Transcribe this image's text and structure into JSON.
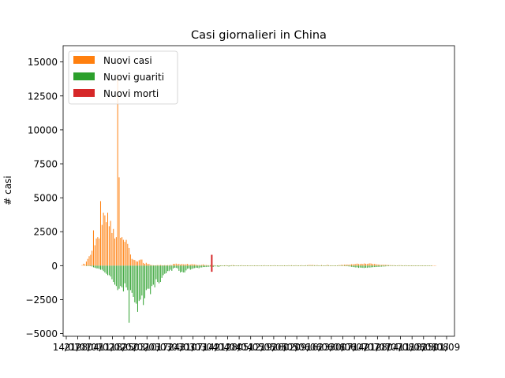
{
  "chart_data": {
    "type": "bar",
    "title": "Casi giornalieri in China",
    "xlabel": "",
    "ylabel": "# casi",
    "ylim": [
      -5200,
      16200
    ],
    "yticks": [
      -5000,
      -2500,
      0,
      2500,
      5000,
      7500,
      10000,
      12500,
      15000
    ],
    "ytick_labels": [
      "−5000",
      "−2500",
      "0",
      "2500",
      "5000",
      "7500",
      "10000",
      "12500",
      "15000"
    ],
    "xtick_labels": [
      "14/01",
      "21/01",
      "28/01",
      "04/02",
      "11/02",
      "18/02",
      "25/02",
      "03/03",
      "10/03",
      "17/03",
      "24/03",
      "31/03",
      "07/04",
      "14/04",
      "21/04",
      "28/04",
      "05/05",
      "12/05",
      "19/05",
      "26/05",
      "02/06",
      "09/06",
      "16/06",
      "23/06",
      "30/06",
      "07/07",
      "14/07",
      "21/07",
      "28/07",
      "04/08",
      "11/08",
      "18/08",
      "25/08",
      "01/09"
    ],
    "legend": {
      "placement": "upper-left",
      "entries": [
        {
          "label": "Nuovi casi",
          "color": "#ff7f0e"
        },
        {
          "label": "Nuovi guariti",
          "color": "#2ca02c"
        },
        {
          "label": "Nuovi morti",
          "color": "#d62728"
        }
      ]
    },
    "grid": false,
    "series": [
      {
        "name": "Nuovi casi",
        "color": "#ff7f0e",
        "values": [
          0,
          0,
          0,
          0,
          0,
          0,
          0,
          0,
          0,
          0,
          0,
          0,
          0,
          0,
          0,
          0,
          0,
          0,
          0,
          0,
          0,
          0,
          0,
          0,
          0,
          0,
          0,
          0,
          0,
          0,
          0,
          0,
          0,
          0,
          0,
          0,
          0,
          0,
          0,
          0,
          0,
          0,
          0,
          0,
          0,
          0,
          0,
          0,
          0,
          0,
          0,
          0,
          0,
          0,
          0,
          0,
          0,
          0,
          0,
          0,
          0,
          0,
          0,
          0,
          0,
          0,
          0,
          0,
          0,
          0,
          0,
          0,
          0,
          0,
          0,
          0,
          0,
          0,
          0,
          0,
          0,
          0,
          0,
          0,
          0,
          0,
          0,
          0,
          0,
          0,
          0,
          0,
          0,
          0,
          0,
          0,
          0,
          0,
          0,
          0,
          0,
          0,
          0,
          0,
          0,
          0,
          0,
          0,
          0,
          0,
          0,
          0,
          0,
          0,
          0,
          0,
          0,
          0,
          0,
          0,
          0,
          0,
          0,
          0,
          0,
          0,
          0,
          0,
          0,
          0,
          0,
          0,
          0,
          0,
          0,
          0,
          0,
          0,
          0,
          0,
          0,
          0,
          0,
          0,
          0,
          0,
          0,
          0,
          0,
          0,
          0,
          0,
          0,
          0,
          0,
          0,
          0,
          0,
          0,
          0,
          0,
          0,
          0,
          0,
          0,
          0,
          0,
          0,
          0,
          0,
          0,
          0,
          0,
          0,
          0,
          0,
          0,
          0,
          0,
          0,
          0,
          0,
          0,
          0,
          0,
          0,
          0,
          0,
          0,
          0,
          0,
          0,
          0,
          0,
          0,
          0,
          0,
          0,
          0,
          0,
          0,
          0,
          0,
          0,
          0,
          0,
          0,
          0,
          0,
          0,
          0,
          0,
          0,
          0,
          0,
          0,
          0,
          0,
          0,
          0,
          0,
          0,
          0,
          0,
          0,
          0,
          0,
          0,
          0,
          0,
          0,
          0,
          0,
          0,
          0,
          0,
          0
        ]
      },
      {
        "name": "Nuovi guariti",
        "color": "#2ca02c",
        "values": []
      },
      {
        "name": "Nuovi morti",
        "color": "#d62728",
        "values": []
      }
    ],
    "days": {
      "cases": [
        40,
        140,
        100,
        300,
        500,
        700,
        800,
        1100,
        2600,
        1500,
        2000,
        2100,
        2000,
        4750,
        3000,
        3900,
        3700,
        3200,
        3900,
        2900,
        3300,
        2400,
        2700,
        2000,
        2100,
        14100,
        6500,
        2050,
        2100,
        1900,
        1750,
        1900,
        1600,
        1300,
        820,
        500,
        440,
        420,
        320,
        300,
        400,
        450,
        450,
        200,
        130,
        210,
        120,
        120,
        50,
        40,
        30,
        20,
        30,
        40,
        30,
        50,
        30,
        20,
        40,
        20,
        40,
        30,
        60,
        40,
        130,
        120,
        150,
        100,
        130,
        80,
        120,
        100,
        90,
        100,
        130,
        60,
        80,
        110,
        90,
        90,
        70,
        40,
        50,
        40,
        60,
        90,
        40,
        50,
        30,
        30,
        40,
        30,
        30,
        30,
        0,
        20,
        20,
        20,
        10,
        10,
        20,
        30,
        20,
        20,
        20,
        30,
        40,
        20,
        20,
        10,
        10,
        10,
        30,
        20,
        20,
        20,
        20,
        10,
        10,
        10,
        10,
        10,
        20,
        20,
        10,
        10,
        10,
        10,
        30,
        10,
        10,
        20,
        20,
        20,
        20,
        30,
        10,
        10,
        20,
        10,
        10,
        20,
        20,
        20,
        10,
        30,
        20,
        30,
        10,
        20,
        30,
        20,
        20,
        20,
        30,
        20,
        20,
        30,
        30,
        50,
        50,
        40,
        50,
        30,
        30,
        40,
        10,
        10,
        40,
        20,
        20,
        10,
        60,
        30,
        20,
        10,
        20,
        10,
        20,
        20,
        40,
        40,
        60,
        50,
        70,
        70,
        80,
        60,
        80,
        100,
        100,
        110,
        120,
        150,
        120,
        110,
        140,
        120,
        160,
        140,
        130,
        150,
        170,
        150,
        110,
        130,
        110,
        90,
        80,
        70,
        50,
        70,
        60,
        60,
        50,
        40,
        40,
        30,
        30,
        30,
        20,
        20,
        30,
        30,
        30,
        20,
        20,
        30,
        20,
        20,
        20,
        20,
        20,
        20,
        10,
        20,
        10,
        10,
        20,
        20,
        10,
        10,
        10,
        10,
        10,
        10,
        20,
        10,
        10
      ],
      "recovered": [
        0,
        0,
        0,
        -10,
        -20,
        -30,
        -40,
        -60,
        -120,
        -150,
        -200,
        -200,
        -240,
        -300,
        -300,
        -400,
        -500,
        -600,
        -700,
        -700,
        -800,
        -1000,
        -1200,
        -1400,
        -1500,
        -1800,
        -1700,
        -1500,
        -1600,
        -1900,
        -1300,
        -1600,
        -1800,
        -4200,
        -1800,
        -2000,
        -2300,
        -2700,
        -2800,
        -3400,
        -2600,
        -2500,
        -2200,
        -2900,
        -2400,
        -1800,
        -1700,
        -1700,
        -2100,
        -1500,
        -1400,
        -1600,
        -1000,
        -1200,
        -1300,
        -1200,
        -900,
        -700,
        -600,
        -560,
        -400,
        -400,
        -300,
        -380,
        -200,
        -150,
        -160,
        -200,
        -380,
        -500,
        -450,
        -500,
        -500,
        -350,
        -230,
        -200,
        -300,
        -250,
        -200,
        -180,
        -150,
        -160,
        -190,
        -130,
        -130,
        -100,
        -100,
        -100,
        -80,
        -80,
        -60,
        -70,
        -90,
        -50,
        -50,
        -60,
        -90,
        -40,
        -40,
        -30,
        -40,
        -30,
        -30,
        -60,
        -40,
        -20,
        -40,
        -30,
        -30,
        -20,
        -40,
        -30,
        -30,
        -20,
        -20,
        -20,
        -10,
        -10,
        -20,
        -20,
        -20,
        -10,
        -10,
        -20,
        -20,
        -20,
        -10,
        -10,
        -10,
        -20,
        -10,
        -10,
        -20,
        -20,
        -10,
        -20,
        -10,
        -10,
        -20,
        -30,
        -20,
        -10,
        -10,
        -20,
        -10,
        -10,
        -20,
        -20,
        -20,
        -10,
        -20,
        -20,
        -10,
        -10,
        -10,
        -20,
        -20,
        -20,
        -30,
        -20,
        -20,
        -10,
        -20,
        -10,
        -20,
        -10,
        -20,
        -10,
        -20,
        -20,
        -10,
        -10,
        -10,
        -10,
        -20,
        -30,
        -20,
        -30,
        -20,
        -10,
        -20,
        -30,
        -20,
        -20,
        -30,
        -40,
        -40,
        -50,
        -60,
        -80,
        -100,
        -110,
        -130,
        -120,
        -160,
        -140,
        -150,
        -160,
        -170,
        -150,
        -160,
        -130,
        -140,
        -120,
        -110,
        -100,
        -100,
        -90,
        -80,
        -80,
        -70,
        -60,
        -60,
        -50,
        -40,
        -40,
        -30,
        -30,
        -30,
        -30,
        -30,
        -20,
        -20,
        -20,
        -20,
        -20,
        -20,
        -20,
        -10,
        -10,
        -10,
        -20,
        -10,
        -10,
        -10,
        -10,
        -10,
        -10,
        -10,
        -10,
        -10,
        -10,
        -10,
        -10,
        -10,
        -10
      ],
      "deaths_spike": {
        "day_index": 91,
        "top": 800,
        "bottom": -450
      }
    }
  }
}
